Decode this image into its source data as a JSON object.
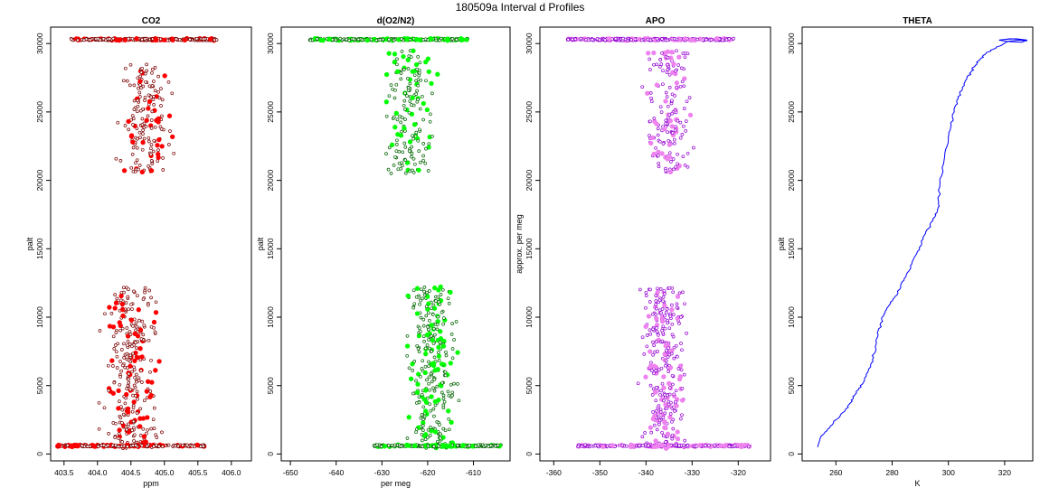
{
  "figure": {
    "title": "180509a   Interval d Profiles"
  },
  "chart_data": [
    {
      "type": "scatter",
      "title": "CO2",
      "xlabel": "ppm",
      "ylabel": "palt",
      "xlim": [
        403.3,
        406.3
      ],
      "ylim": [
        -500,
        31200
      ],
      "xticks": [
        403.5,
        404.0,
        404.5,
        405.0,
        405.5,
        406.0
      ],
      "xtick_labels": [
        "403.5",
        "404.0",
        "404.5",
        "405.0",
        "405.5",
        "406.0"
      ],
      "yticks": [
        0,
        5000,
        10000,
        15000,
        20000,
        25000,
        30000
      ],
      "ytick_labels": [
        "0",
        "5000",
        "10000",
        "15000",
        "20000",
        "25000",
        "30000"
      ],
      "grid": false,
      "color": "#ff0000",
      "edge_color": "#7a0000",
      "clusters": [
        {
          "y_range": [
            20600,
            28500
          ],
          "x_center": 404.7,
          "x_spread": 0.55,
          "n": 170
        },
        {
          "y_range": [
            400,
            12200
          ],
          "x_center": 404.5,
          "x_spread": 0.55,
          "n": 300
        },
        {
          "y_band": 30300,
          "x_range": [
            403.6,
            405.8
          ],
          "n": 260
        },
        {
          "y_band": 600,
          "x_range": [
            403.4,
            405.6
          ],
          "n": 260
        }
      ]
    },
    {
      "type": "scatter",
      "title": "d(O2/N2)",
      "xlabel": "per meg",
      "ylabel": "palt",
      "xlim": [
        -652,
        -602
      ],
      "ylim": [
        -500,
        31200
      ],
      "xticks": [
        -650,
        -640,
        -630,
        -620,
        -610
      ],
      "xtick_labels": [
        "-650",
        "-640",
        "-630",
        "-620",
        "-610"
      ],
      "yticks": [
        0,
        5000,
        10000,
        15000,
        20000,
        25000,
        30000
      ],
      "ytick_labels": [
        "0",
        "5000",
        "10000",
        "15000",
        "20000",
        "25000",
        "30000"
      ],
      "grid": false,
      "color": "#00ff00",
      "edge_color": "#006400",
      "clusters": [
        {
          "y_range": [
            20500,
            29500
          ],
          "x_center": -624,
          "x_spread": 7,
          "n": 170
        },
        {
          "y_range": [
            400,
            12300
          ],
          "x_center": -619,
          "x_spread": 7,
          "n": 300
        },
        {
          "y_band": 30300,
          "x_range": [
            -646,
            -611
          ],
          "n": 260
        },
        {
          "y_band": 600,
          "x_range": [
            -632,
            -604
          ],
          "n": 260
        }
      ]
    },
    {
      "type": "scatter",
      "title": "APO",
      "xlabel": "",
      "ylabel": "approx. per meg",
      "xlim": [
        -363,
        -313
      ],
      "ylim": [
        -500,
        31200
      ],
      "xticks": [
        -360,
        -350,
        -340,
        -330,
        -320
      ],
      "xtick_labels": [
        "-360",
        "-350",
        "-340",
        "-330",
        "-320"
      ],
      "yticks": [
        0,
        5000,
        10000,
        15000,
        20000,
        25000,
        30000
      ],
      "ytick_labels": [
        "0",
        "5000",
        "10000",
        "15000",
        "20000",
        "25000",
        "30000"
      ],
      "grid": false,
      "color": "#ee82ee",
      "edge_color": "#9400d3",
      "clusters": [
        {
          "y_range": [
            20600,
            29500
          ],
          "x_center": -335,
          "x_spread": 7,
          "n": 170
        },
        {
          "y_range": [
            400,
            12200
          ],
          "x_center": -336,
          "x_spread": 7,
          "n": 300
        },
        {
          "y_band": 30300,
          "x_range": [
            -357,
            -321
          ],
          "n": 260
        },
        {
          "y_band": 600,
          "x_range": [
            -355,
            -317
          ],
          "n": 260
        }
      ]
    },
    {
      "type": "line",
      "title": "THETA",
      "xlabel": "K",
      "ylabel": "palt",
      "xlim": [
        248,
        330
      ],
      "ylim": [
        -500,
        31200
      ],
      "xticks": [
        260,
        280,
        300,
        320
      ],
      "xtick_labels": [
        "260",
        "280",
        "300",
        "320"
      ],
      "yticks": [
        0,
        5000,
        10000,
        15000,
        20000,
        25000,
        30000
      ],
      "ytick_labels": [
        "0",
        "5000",
        "10000",
        "15000",
        "20000",
        "25000",
        "30000"
      ],
      "grid": false,
      "color": "#0000ff",
      "profile": {
        "x": [
          253.5,
          254.5,
          257,
          260,
          263,
          265,
          266,
          268,
          270,
          271.5,
          273,
          274,
          275,
          276,
          277,
          279,
          281,
          283,
          285,
          287,
          289,
          291,
          293,
          294.5,
          296,
          296.5,
          297,
          298.5,
          300,
          301,
          302,
          303.5,
          305,
          306.5,
          308,
          309.5,
          311,
          313,
          315,
          317,
          319
        ],
        "y": [
          500,
          1200,
          1800,
          2500,
          3100,
          3700,
          4200,
          4700,
          5300,
          6100,
          6900,
          7800,
          8700,
          9600,
          10200,
          10900,
          11500,
          12300,
          13100,
          13900,
          14800,
          15700,
          16500,
          17200,
          17700,
          18200,
          19800,
          21500,
          23000,
          24000,
          25200,
          26000,
          26700,
          27400,
          27900,
          28400,
          28800,
          29200,
          29500,
          29700,
          29900
        ]
      },
      "loop": {
        "x": [
          319,
          321,
          325,
          328,
          326,
          322,
          320,
          318,
          321,
          326,
          328,
          324,
          320
        ],
        "y": [
          29900,
          30150,
          30250,
          30200,
          30300,
          30350,
          30300,
          30250,
          30150,
          30100,
          30250,
          30350,
          30300
        ]
      }
    }
  ]
}
